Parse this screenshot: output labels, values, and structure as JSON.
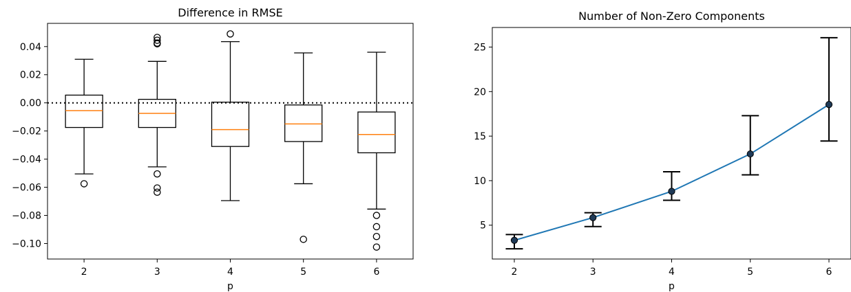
{
  "chart_data": [
    {
      "type": "box",
      "title": "Difference in RMSE",
      "xlabel": "p",
      "ylabel": "",
      "categories": [
        "2",
        "3",
        "4",
        "5",
        "6"
      ],
      "ylim": [
        -0.111,
        0.0565
      ],
      "yticks": [
        0.04,
        0.02,
        0.0,
        -0.02,
        -0.04,
        -0.06,
        -0.08,
        -0.1
      ],
      "ytick_labels": [
        "0.04",
        "0.02",
        "0.00",
        "−0.02",
        "−0.04",
        "−0.06",
        "−0.08",
        "−0.10"
      ],
      "reference_line": {
        "y": 0.0,
        "style": "dotted"
      },
      "boxes": [
        {
          "whisker_low": -0.0505,
          "q1": -0.0175,
          "median": -0.0055,
          "q3": 0.0055,
          "whisker_high": 0.031,
          "outliers": [
            -0.0575
          ]
        },
        {
          "whisker_low": -0.0455,
          "q1": -0.0175,
          "median": -0.0075,
          "q3": 0.0025,
          "whisker_high": 0.0295,
          "outliers": [
            0.0465,
            0.0445,
            0.0425,
            0.042,
            -0.0505,
            -0.0605,
            -0.0635
          ]
        },
        {
          "whisker_low": -0.0695,
          "q1": -0.031,
          "median": -0.019,
          "q3": 0.0005,
          "whisker_high": 0.0435,
          "outliers": [
            0.049
          ]
        },
        {
          "whisker_low": -0.0575,
          "q1": -0.0275,
          "median": -0.015,
          "q3": -0.0015,
          "whisker_high": 0.0355,
          "outliers": [
            -0.097
          ]
        },
        {
          "whisker_low": -0.0755,
          "q1": -0.0355,
          "median": -0.0225,
          "q3": -0.0065,
          "whisker_high": 0.036,
          "outliers": [
            -0.08,
            -0.088,
            -0.095,
            -0.1025
          ]
        }
      ],
      "colors": {
        "box": "#000000",
        "median": "#ff7f0e"
      }
    },
    {
      "type": "line",
      "title": "Number of Non-Zero Components",
      "xlabel": "p",
      "ylabel": "",
      "x": [
        2,
        3,
        4,
        5,
        6
      ],
      "y": [
        3.3,
        5.85,
        8.8,
        13.0,
        18.55
      ],
      "error_low": [
        2.35,
        4.85,
        7.8,
        10.65,
        14.45
      ],
      "error_high": [
        3.95,
        6.4,
        11.0,
        17.3,
        26.05
      ],
      "xlim": [
        1.72,
        6.28
      ],
      "ylim": [
        1.2,
        27.2
      ],
      "yticks": [
        5,
        10,
        15,
        20,
        25
      ],
      "colors": {
        "line": "#1f77b4",
        "marker": "#1f3a57",
        "errorbar": "#000000"
      }
    }
  ]
}
